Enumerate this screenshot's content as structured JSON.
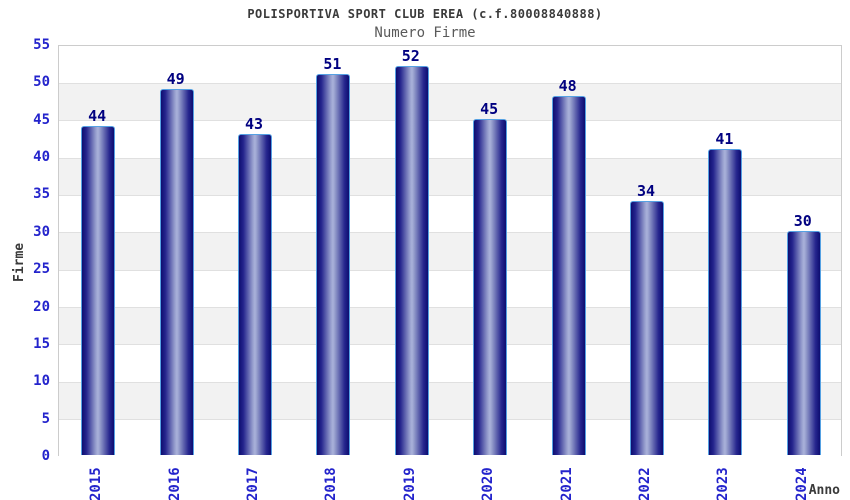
{
  "chart_data": {
    "type": "bar",
    "title": "POLISPORTIVA SPORT CLUB EREA (c.f.80008840888)",
    "subtitle": "Numero Firme",
    "xlabel": "Anno",
    "ylabel": "Firme",
    "categories": [
      "2015",
      "2016",
      "2017",
      "2018",
      "2019",
      "2020",
      "2021",
      "2022",
      "2023",
      "2024"
    ],
    "values": [
      44,
      49,
      43,
      51,
      52,
      45,
      48,
      34,
      41,
      30
    ],
    "ylim": [
      0,
      55
    ],
    "ytick_step": 5,
    "grid": "horizontal",
    "legend_position": "none",
    "alternating_bands": true,
    "colors": {
      "title": "#3a3a3a",
      "subtitle": "#5a5a5a",
      "axis_label": "#3a3a3a",
      "tick_label": "#2424cc",
      "value_label": "#000080",
      "plot_border": "#cccccc",
      "gridline": "#e0e0e0",
      "band": "#f2f2f2",
      "band_alt": "#ffffff",
      "bar_border": "#55a1e3",
      "bar_dark": "#0d0d70",
      "bar_mid": "#26268e",
      "bar_light": "#aab2da"
    }
  }
}
